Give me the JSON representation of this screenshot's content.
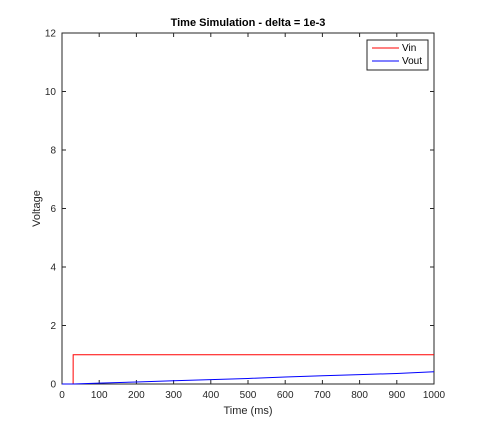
{
  "chart_data": {
    "type": "line",
    "title": "Time Simulation - delta = 1e-3",
    "xlabel": "Time (ms)",
    "ylabel": "Voltage",
    "xlim": [
      0,
      1000
    ],
    "ylim": [
      0,
      12
    ],
    "xticks": [
      0,
      100,
      200,
      300,
      400,
      500,
      600,
      700,
      800,
      900,
      1000
    ],
    "yticks": [
      0,
      2,
      4,
      6,
      8,
      10,
      12
    ],
    "grid": false,
    "legend_position": "top-right",
    "series": [
      {
        "name": "Vin",
        "color": "#ff0000",
        "x": [
          0,
          29.9,
          30,
          1000
        ],
        "y": [
          0,
          0,
          1,
          1
        ]
      },
      {
        "name": "Vout",
        "color": "#0000ff",
        "x": [
          0,
          30,
          100,
          200,
          300,
          400,
          500,
          600,
          700,
          800,
          900,
          1000
        ],
        "y": [
          0,
          0,
          0.03,
          0.07,
          0.11,
          0.15,
          0.19,
          0.24,
          0.28,
          0.32,
          0.36,
          0.42
        ]
      }
    ]
  }
}
